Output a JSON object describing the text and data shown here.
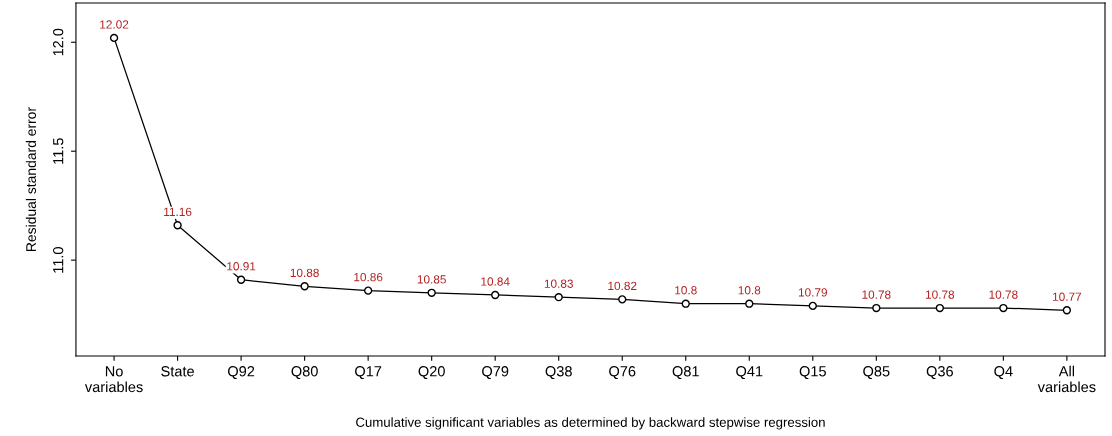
{
  "chart_data": {
    "type": "line",
    "xlabel": "Cumulative significant variables as determined by backward stepwise regression",
    "ylabel": "Residual standard error",
    "categories": [
      "No\nvariables",
      "State",
      "Q92",
      "Q80",
      "Q17",
      "Q20",
      "Q79",
      "Q38",
      "Q76",
      "Q81",
      "Q41",
      "Q15",
      "Q85",
      "Q36",
      "Q4",
      "All\nvariables"
    ],
    "series": [
      {
        "color": "#000000",
        "values": [
          12.02,
          11.16,
          10.91,
          10.88,
          10.86,
          10.85,
          10.84,
          10.83,
          10.82,
          10.8,
          10.8,
          10.79,
          10.78,
          10.78,
          10.78,
          10.77
        ]
      }
    ],
    "data_labels": true,
    "ylim": [
      10.56,
      12.18
    ],
    "yticks": [
      {
        "value": 11,
        "label": "11.0"
      },
      11.5,
      {
        "value": 12,
        "label": "12.0"
      }
    ],
    "marker": "circle",
    "line_style": "solid",
    "grid": false,
    "legend": false
  }
}
